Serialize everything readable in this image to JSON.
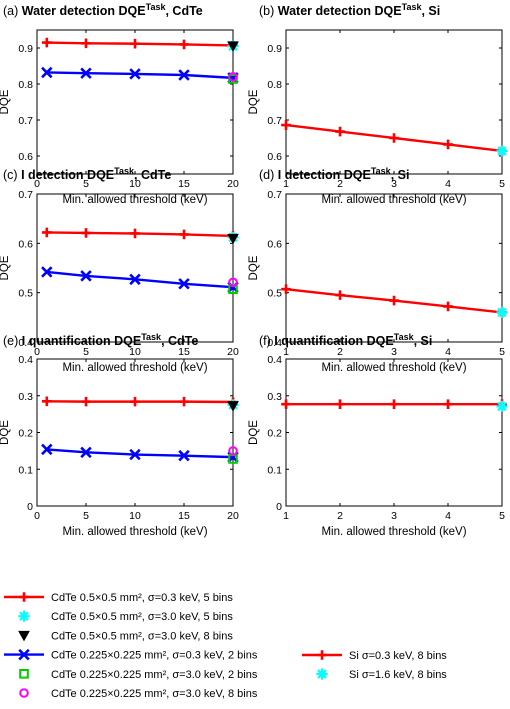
{
  "chart_data": [
    {
      "type": "line",
      "panel_label": "(a)",
      "title": "Water detection DQE",
      "title_sup": "Task",
      "title_tail": ", CdTe",
      "xlabel": "Min. allowed threshold (keV)",
      "ylabel": "DQE",
      "xlim": [
        0,
        20
      ],
      "ylim": [
        0.55,
        0.95
      ],
      "xticks": [
        0,
        5,
        10,
        15,
        20
      ],
      "yticks": [
        0.6,
        0.7,
        0.8,
        0.9
      ],
      "yticklabels": [
        "0.6",
        "0.7",
        "0.8",
        "0.9"
      ],
      "grid": false,
      "series": [
        {
          "ref": "cdte05_s03_5",
          "x": [
            1,
            5,
            10,
            15,
            20
          ],
          "y": [
            0.915,
            0.913,
            0.912,
            0.91,
            0.907
          ]
        },
        {
          "ref": "cdte05_s30_5",
          "x": [
            20
          ],
          "y": [
            0.905
          ]
        },
        {
          "ref": "cdte05_s30_8",
          "x": [
            20
          ],
          "y": [
            0.906
          ]
        },
        {
          "ref": "cdte0225_s03_2",
          "x": [
            1,
            5,
            10,
            15,
            20
          ],
          "y": [
            0.832,
            0.83,
            0.828,
            0.825,
            0.817
          ]
        },
        {
          "ref": "cdte0225_s30_2",
          "x": [
            20
          ],
          "y": [
            0.814
          ]
        },
        {
          "ref": "cdte0225_s30_8",
          "x": [
            20
          ],
          "y": [
            0.82
          ]
        }
      ]
    },
    {
      "type": "line",
      "panel_label": "(b)",
      "title": "Water detection DQE",
      "title_sup": "Task",
      "title_tail": ", Si",
      "xlabel": "Min. allowed threshold (keV)",
      "ylabel": "DQE",
      "xlim": [
        1,
        5
      ],
      "ylim": [
        0.55,
        0.95
      ],
      "xticks": [
        1,
        2,
        3,
        4,
        5
      ],
      "yticks": [
        0.6,
        0.7,
        0.8,
        0.9
      ],
      "yticklabels": [
        "0.6",
        "0.7",
        "0.8",
        "0.9"
      ],
      "grid": false,
      "series": [
        {
          "ref": "si_s03_8",
          "x": [
            1,
            2,
            3,
            4,
            5
          ],
          "y": [
            0.686,
            0.668,
            0.65,
            0.632,
            0.614
          ]
        },
        {
          "ref": "si_s16_8",
          "x": [
            5
          ],
          "y": [
            0.614
          ]
        }
      ]
    },
    {
      "type": "line",
      "panel_label": "(c)",
      "title": "I detection DQE",
      "title_sup": "Task",
      "title_tail": ", CdTe",
      "xlabel": "Min. allowed threshold (keV)",
      "ylabel": "DQE",
      "xlim": [
        0,
        20
      ],
      "ylim": [
        0.4,
        0.7
      ],
      "xticks": [
        0,
        5,
        10,
        15,
        20
      ],
      "yticks": [
        0.4,
        0.5,
        0.6,
        0.7
      ],
      "yticklabels": [
        "0.4",
        "0.5",
        "0.6",
        "0.7"
      ],
      "grid": false,
      "series": [
        {
          "ref": "cdte05_s03_5",
          "x": [
            1,
            5,
            10,
            15,
            20
          ],
          "y": [
            0.622,
            0.621,
            0.62,
            0.618,
            0.615
          ]
        },
        {
          "ref": "cdte05_s30_5",
          "x": [
            20
          ],
          "y": [
            0.612
          ]
        },
        {
          "ref": "cdte05_s30_8",
          "x": [
            20
          ],
          "y": [
            0.61
          ]
        },
        {
          "ref": "cdte0225_s03_2",
          "x": [
            1,
            5,
            10,
            15,
            20
          ],
          "y": [
            0.542,
            0.534,
            0.527,
            0.518,
            0.511
          ]
        },
        {
          "ref": "cdte0225_s30_2",
          "x": [
            20
          ],
          "y": [
            0.507
          ]
        },
        {
          "ref": "cdte0225_s30_8",
          "x": [
            20
          ],
          "y": [
            0.521
          ]
        }
      ]
    },
    {
      "type": "line",
      "panel_label": "(d)",
      "title": "I detection DQE",
      "title_sup": "Task",
      "title_tail": ", Si",
      "xlabel": "Min. allowed threshold (keV)",
      "ylabel": "DQE",
      "xlim": [
        1,
        5
      ],
      "ylim": [
        0.4,
        0.7
      ],
      "xticks": [
        1,
        2,
        3,
        4,
        5
      ],
      "yticks": [
        0.4,
        0.5,
        0.6,
        0.7
      ],
      "yticklabels": [
        "0.4",
        "0.5",
        "0.6",
        "0.7"
      ],
      "grid": false,
      "series": [
        {
          "ref": "si_s03_8",
          "x": [
            1,
            2,
            3,
            4,
            5
          ],
          "y": [
            0.507,
            0.495,
            0.484,
            0.472,
            0.46
          ]
        },
        {
          "ref": "si_s16_8",
          "x": [
            5
          ],
          "y": [
            0.46
          ]
        }
      ]
    },
    {
      "type": "line",
      "panel_label": "(e)",
      "title": "I quantification DQE",
      "title_sup": "Task",
      "title_tail": ", CdTe",
      "xlabel": "Min. allowed threshold (keV)",
      "ylabel": "DQE",
      "xlim": [
        0,
        20
      ],
      "ylim": [
        0,
        0.4
      ],
      "xticks": [
        0,
        5,
        10,
        15,
        20
      ],
      "yticks": [
        0,
        0.1,
        0.2,
        0.3,
        0.4
      ],
      "yticklabels": [
        "0",
        "0.1",
        "0.2",
        "0.3",
        "0.4"
      ],
      "grid": false,
      "series": [
        {
          "ref": "cdte05_s03_5",
          "x": [
            1,
            5,
            10,
            15,
            20
          ],
          "y": [
            0.285,
            0.284,
            0.284,
            0.284,
            0.283
          ]
        },
        {
          "ref": "cdte05_s30_5",
          "x": [
            20
          ],
          "y": [
            0.275
          ]
        },
        {
          "ref": "cdte05_s30_8",
          "x": [
            20
          ],
          "y": [
            0.273
          ]
        },
        {
          "ref": "cdte0225_s03_2",
          "x": [
            1,
            5,
            10,
            15,
            20
          ],
          "y": [
            0.154,
            0.146,
            0.14,
            0.137,
            0.133
          ]
        },
        {
          "ref": "cdte0225_s30_2",
          "x": [
            20
          ],
          "y": [
            0.128
          ]
        },
        {
          "ref": "cdte0225_s30_8",
          "x": [
            20
          ],
          "y": [
            0.15
          ]
        }
      ]
    },
    {
      "type": "line",
      "panel_label": "(f)",
      "title": "I quantification DQE",
      "title_sup": "Task",
      "title_tail": ", Si",
      "xlabel": "Min. allowed threshold (keV)",
      "ylabel": "DQE",
      "xlim": [
        1,
        5
      ],
      "ylim": [
        0,
        0.4
      ],
      "xticks": [
        1,
        2,
        3,
        4,
        5
      ],
      "yticks": [
        0,
        0.1,
        0.2,
        0.3,
        0.4
      ],
      "yticklabels": [
        "0",
        "0.1",
        "0.2",
        "0.3",
        "0.4"
      ],
      "grid": false,
      "series": [
        {
          "ref": "si_s03_8",
          "x": [
            1,
            2,
            3,
            4,
            5
          ],
          "y": [
            0.277,
            0.277,
            0.277,
            0.277,
            0.277
          ]
        },
        {
          "ref": "si_s16_8",
          "x": [
            5
          ],
          "y": [
            0.271
          ]
        }
      ]
    }
  ],
  "legends": {
    "left": [
      {
        "ref": "cdte05_s03_5",
        "label": "CdTe 0.5×0.5 mm², σ=0.3 keV, 5 bins"
      },
      {
        "ref": "cdte05_s30_5",
        "label": "CdTe 0.5×0.5 mm², σ=3.0 keV, 5 bins"
      },
      {
        "ref": "cdte05_s30_8",
        "label": "CdTe 0.5×0.5 mm², σ=3.0 keV, 8 bins"
      },
      {
        "ref": "cdte0225_s03_2",
        "label": "CdTe 0.225×0.225 mm², σ=0.3 keV, 2 bins"
      },
      {
        "ref": "cdte0225_s30_2",
        "label": "CdTe 0.225×0.225 mm², σ=3.0 keV, 2 bins"
      },
      {
        "ref": "cdte0225_s30_8",
        "label": "CdTe 0.225×0.225 mm², σ=3.0 keV, 8 bins"
      }
    ],
    "right": [
      {
        "ref": "si_s03_8",
        "label": "Si σ=0.3 keV, 8 bins"
      },
      {
        "ref": "si_s16_8",
        "label": "Si σ=1.6 keV, 8 bins"
      }
    ]
  },
  "styles": {
    "cdte05_s03_5": {
      "color": "#ff0000",
      "marker": "plus",
      "line": true
    },
    "cdte05_s30_5": {
      "color": "#00ffff",
      "marker": "asterisk",
      "line": false
    },
    "cdte05_s30_8": {
      "color": "#000000",
      "marker": "triangle-down",
      "line": false
    },
    "cdte0225_s03_2": {
      "color": "#0000ff",
      "marker": "x",
      "line": true
    },
    "cdte0225_s30_2": {
      "color": "#00cc00",
      "marker": "square",
      "line": false
    },
    "cdte0225_s30_8": {
      "color": "#ff00ff",
      "marker": "circle",
      "line": false
    },
    "si_s03_8": {
      "color": "#ff0000",
      "marker": "plus",
      "line": true
    },
    "si_s16_8": {
      "color": "#00ffff",
      "marker": "asterisk",
      "line": false
    }
  }
}
